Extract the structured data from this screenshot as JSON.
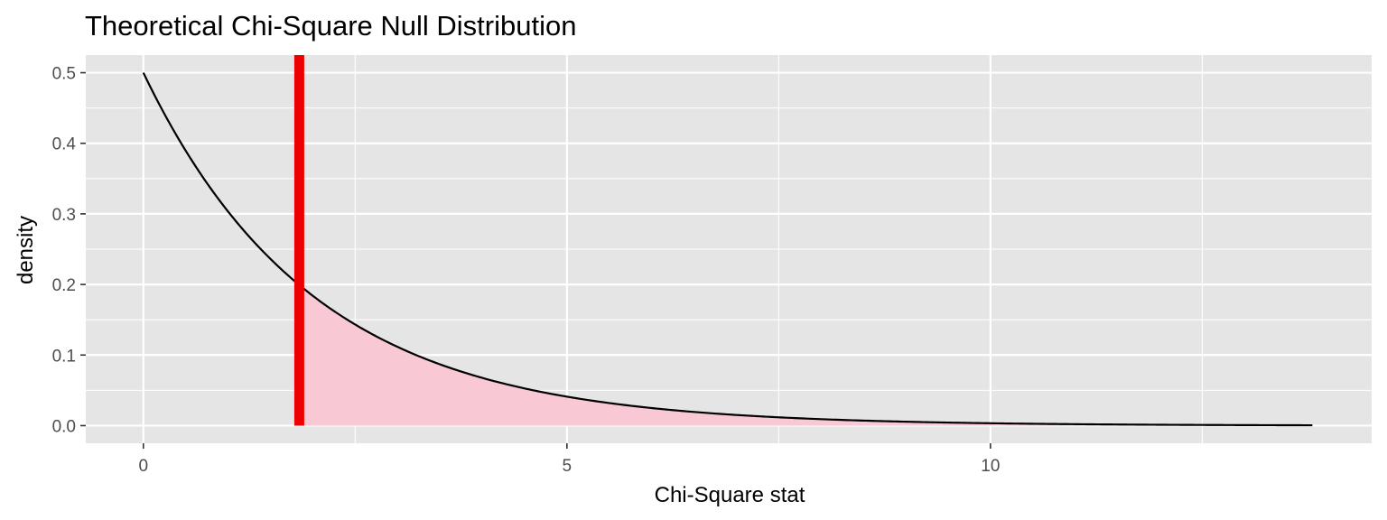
{
  "chart_data": {
    "type": "area",
    "title": "Theoretical Chi-Square Null Distribution",
    "xlabel": "Chi-Square stat",
    "ylabel": "density",
    "xlim": [
      -0.68,
      14.5
    ],
    "ylim": [
      -0.025,
      0.525
    ],
    "x_ticks": [
      0,
      5,
      10
    ],
    "x_tick_labels": [
      "0",
      "5",
      "10"
    ],
    "y_ticks": [
      0.0,
      0.1,
      0.2,
      0.3,
      0.4,
      0.5
    ],
    "y_tick_labels": [
      "0.0",
      "0.1",
      "0.2",
      "0.3",
      "0.4",
      "0.5"
    ],
    "grid": true,
    "series": [
      {
        "x": [
          0,
          0.5,
          1,
          1.5,
          1.84,
          2,
          2.5,
          3,
          3.5,
          4,
          4.5,
          5,
          5.5,
          6,
          6.5,
          7,
          7.5,
          8,
          8.5,
          9,
          9.5,
          10,
          10.5,
          11,
          11.5,
          12,
          12.5,
          13,
          13.5,
          13.8
        ],
        "y": [
          0.5,
          0.389,
          0.303,
          0.236,
          0.199,
          0.184,
          0.143,
          0.112,
          0.087,
          0.068,
          0.053,
          0.041,
          0.032,
          0.025,
          0.019,
          0.015,
          0.012,
          0.009,
          0.007,
          0.006,
          0.004,
          0.003,
          0.003,
          0.002,
          0.002,
          0.001,
          0.001,
          0.001,
          0.001,
          0.001
        ]
      }
    ],
    "observed_stat": 1.84,
    "shaded_region": [
      1.84,
      13.8
    ],
    "colors": {
      "panel_background": "#e5e5e5",
      "grid": "#ffffff",
      "curve": "#000000",
      "shade": "#f8c8d4",
      "observed_line": "#ee0000",
      "tick_text": "#4d4d4d"
    }
  }
}
